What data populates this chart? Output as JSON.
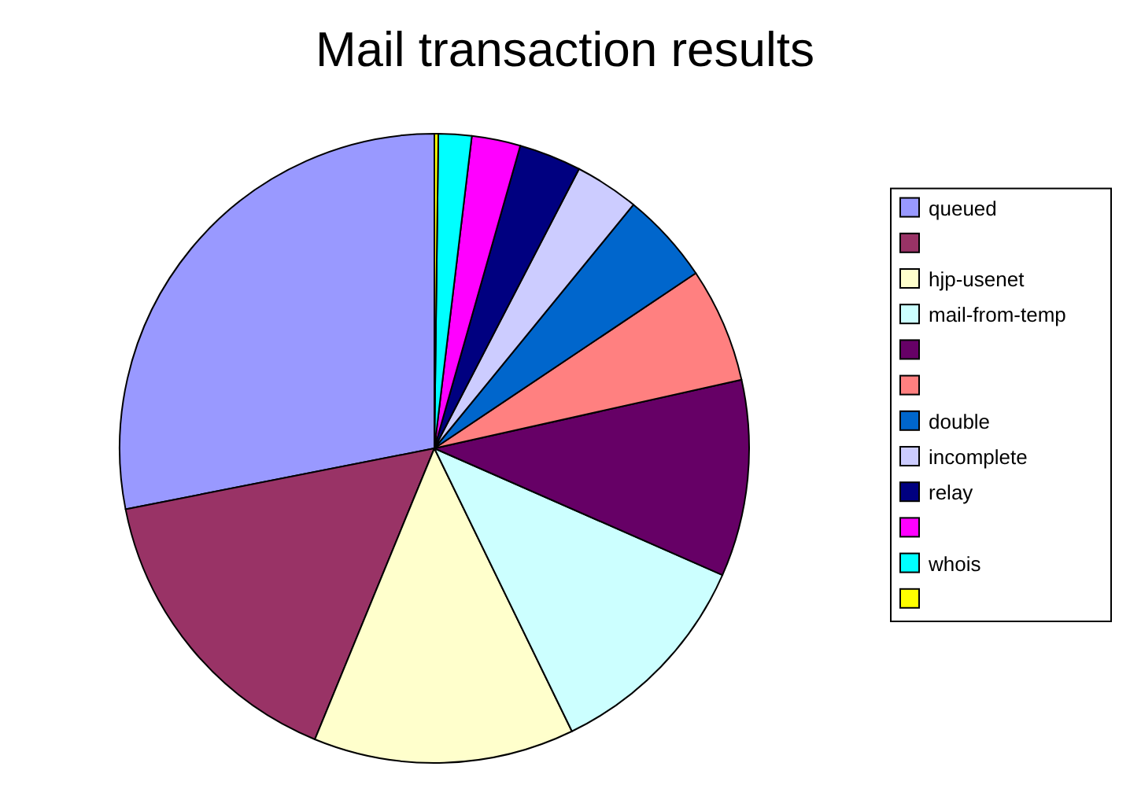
{
  "chart_data": {
    "type": "pie",
    "title": "Mail transaction results",
    "categories": [
      "queued",
      null,
      "hjp-usenet",
      "mail-from-temp",
      null,
      null,
      "double",
      "incomplete",
      "relay",
      null,
      "whois",
      null
    ],
    "values": [
      28.1,
      15.7,
      13.4,
      11.2,
      10.1,
      5.9,
      4.7,
      3.3,
      3.2,
      2.5,
      1.7,
      0.2
    ],
    "colors": [
      "#9999ff",
      "#993366",
      "#ffffcc",
      "#ccffff",
      "#660066",
      "#ff8080",
      "#0066cc",
      "#ccccff",
      "#000080",
      "#ff00ff",
      "#00ffff",
      "#ffff00"
    ],
    "legend": "right"
  }
}
